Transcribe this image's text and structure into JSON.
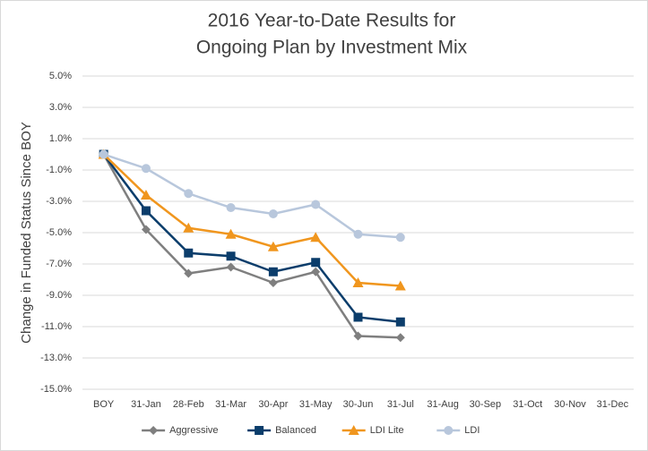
{
  "chart_data": {
    "type": "line",
    "title": [
      "2016 Year-to-Date Results for",
      "Ongoing Plan by Investment Mix"
    ],
    "y_label": "Change in Funded Status Since BOY",
    "categories": [
      "BOY",
      "31-Jan",
      "28-Feb",
      "31-Mar",
      "30-Apr",
      "31-May",
      "30-Jun",
      "31-Jul",
      "31-Aug",
      "30-Sep",
      "31-Oct",
      "30-Nov",
      "31-Dec"
    ],
    "series": [
      {
        "name": "Aggressive",
        "color": "#7f7f7f",
        "marker": "diamond",
        "values": [
          0,
          -4.8,
          -7.6,
          -7.2,
          -8.2,
          -7.5,
          -11.6,
          -11.7,
          null,
          null,
          null,
          null,
          null
        ]
      },
      {
        "name": "Balanced",
        "color": "#0b3d6b",
        "marker": "square",
        "values": [
          0,
          -3.6,
          -6.3,
          -6.5,
          -7.5,
          -6.9,
          -10.4,
          -10.7,
          null,
          null,
          null,
          null,
          null
        ]
      },
      {
        "name": "LDI Lite",
        "color": "#f0961e",
        "marker": "triangle",
        "values": [
          0,
          -2.6,
          -4.7,
          -5.1,
          -5.9,
          -5.3,
          -8.2,
          -8.4,
          null,
          null,
          null,
          null,
          null
        ]
      },
      {
        "name": "LDI",
        "color": "#b8c7dc",
        "marker": "circle",
        "values": [
          0,
          -0.9,
          -2.5,
          -3.4,
          -3.8,
          -3.2,
          -5.1,
          -5.3,
          null,
          null,
          null,
          null,
          null
        ]
      }
    ],
    "ylim": [
      -15,
      5
    ],
    "yticks": [
      {
        "value": 5,
        "label": "5.0%"
      },
      {
        "value": 3,
        "label": "3.0%"
      },
      {
        "value": 1,
        "label": "1.0%"
      },
      {
        "value": -1,
        "label": "-1.0%"
      },
      {
        "value": -3,
        "label": "-3.0%"
      },
      {
        "value": -5,
        "label": "-5.0%"
      },
      {
        "value": -7,
        "label": "-7.0%"
      },
      {
        "value": -9,
        "label": "-9.0%"
      },
      {
        "value": -11,
        "label": "-11.0%"
      },
      {
        "value": -13,
        "label": "-13.0%"
      },
      {
        "value": -15,
        "label": "-15.0%"
      }
    ],
    "grid": true,
    "legend": "bottom"
  }
}
